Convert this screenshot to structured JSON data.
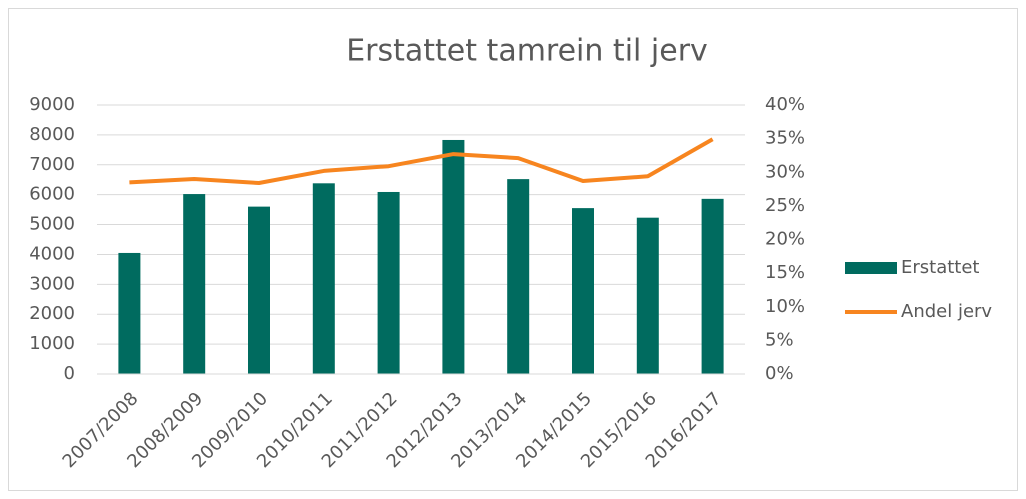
{
  "chart_data": {
    "type": "bar_line",
    "title": "Erstattet tamrein til jerv",
    "categories": [
      "2007/2008",
      "2008/2009",
      "2009/2010",
      "2010/2011",
      "2011/2012",
      "2012/2013",
      "2013/2014",
      "2014/2015",
      "2015/2016",
      "2016/2017"
    ],
    "series": [
      {
        "name": "Erstattet",
        "type": "bar",
        "color": "#006b5f",
        "values": [
          4050,
          6020,
          5600,
          6380,
          6090,
          7830,
          6520,
          5550,
          5230,
          5860
        ]
      },
      {
        "name": "Andel jerv",
        "type": "line",
        "axis": "y2",
        "color": "#f7851f",
        "values": [
          28.5,
          29.0,
          28.4,
          30.2,
          30.9,
          32.7,
          32.1,
          28.7,
          29.4,
          34.9
        ]
      }
    ],
    "ylim": [
      0,
      9000
    ],
    "yticks": [
      0,
      1000,
      2000,
      3000,
      4000,
      5000,
      6000,
      7000,
      8000,
      9000
    ],
    "y2lim": [
      0,
      40
    ],
    "y2ticks": [
      {
        "value": 0,
        "label": "0%"
      },
      {
        "value": 5,
        "label": "5%"
      },
      {
        "value": 10,
        "label": "10%"
      },
      {
        "value": 15,
        "label": "15%"
      },
      {
        "value": 20,
        "label": "20%"
      },
      {
        "value": 25,
        "label": "25%"
      },
      {
        "value": 30,
        "label": "30%"
      },
      {
        "value": 35,
        "label": "35%"
      },
      {
        "value": 40,
        "label": "40%"
      }
    ],
    "grid": true,
    "legend": "right"
  }
}
